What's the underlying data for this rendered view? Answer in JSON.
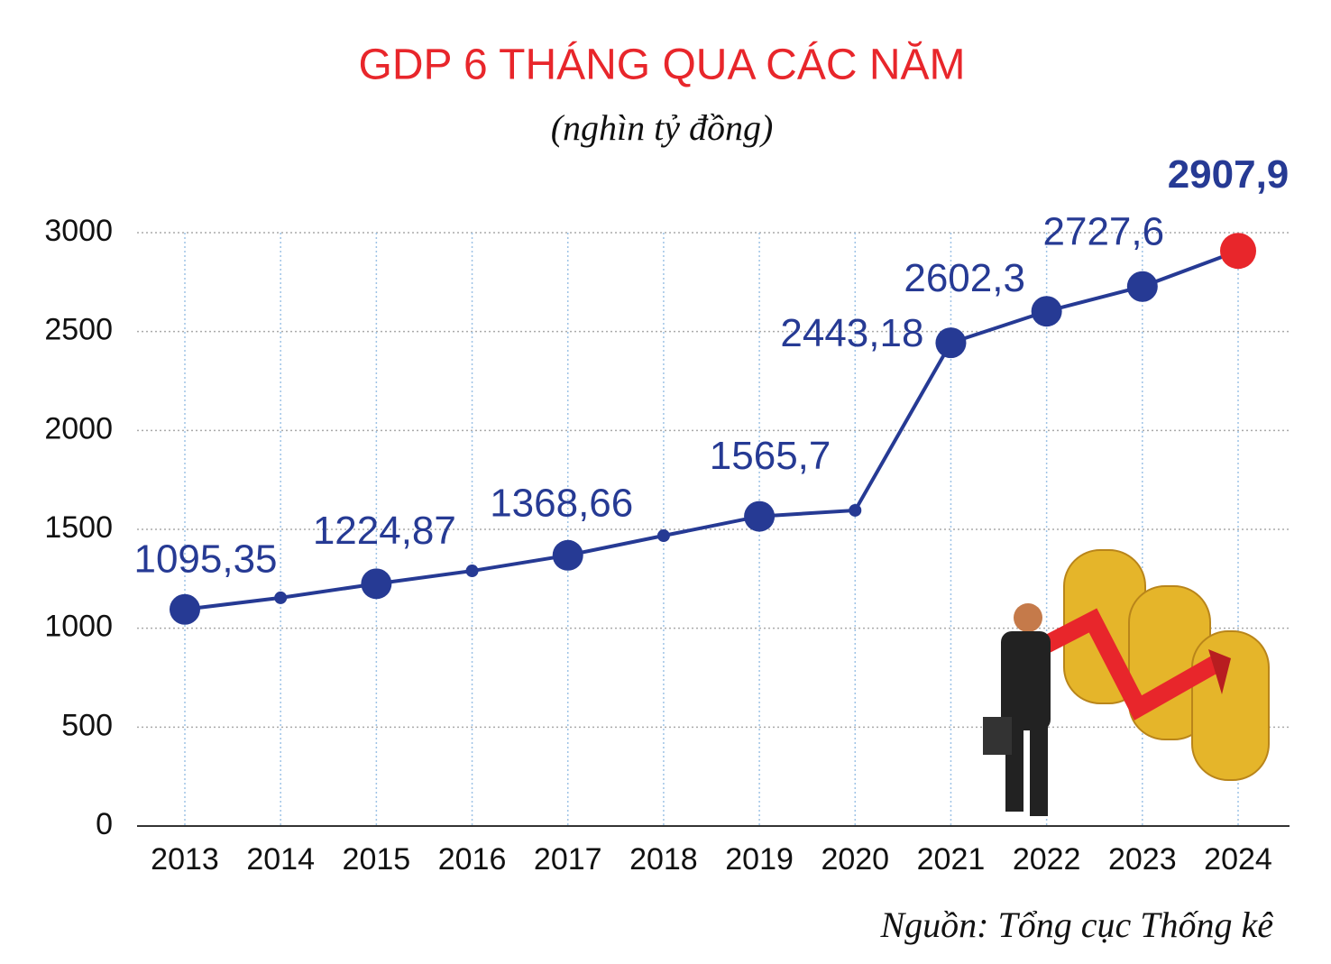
{
  "chart_data": {
    "type": "line",
    "title": "GDP 6 THÁNG QUA CÁC NĂM",
    "subtitle": "(nghìn tỷ đồng)",
    "source": "Nguồn: Tổng cục Thống kê",
    "categories": [
      "2013",
      "2014",
      "2015",
      "2016",
      "2017",
      "2018",
      "2019",
      "2020",
      "2021",
      "2022",
      "2023",
      "2024"
    ],
    "series": [
      {
        "color": "#263a94",
        "highlight_color": "#e8262b",
        "values": [
          1095.35,
          1154,
          1224.87,
          1290,
          1368.66,
          1468,
          1565.7,
          1596,
          2443.18,
          2602.3,
          2727.6,
          2907.9
        ],
        "value_labels": [
          "1095,35",
          null,
          "1224,87",
          null,
          "1368,66",
          null,
          "1565,7",
          null,
          "2443,18",
          "2602,3",
          "2727,6",
          "2907,9"
        ]
      }
    ],
    "ylim": [
      0,
      3000
    ],
    "yticks": [
      0,
      500,
      1000,
      1500,
      2000,
      2500,
      3000
    ],
    "grid": true
  }
}
